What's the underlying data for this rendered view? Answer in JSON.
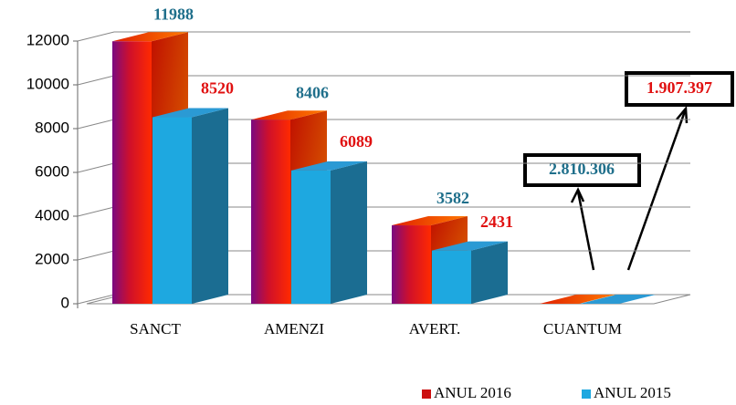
{
  "chart_data": {
    "type": "bar3d",
    "categories": [
      "SANCT",
      "AMENZI",
      "AVERT.",
      "CUANTUM"
    ],
    "series": [
      {
        "name": "ANUL 2016",
        "color": "#cc1010",
        "label_color": "#1f6f8b",
        "values": [
          11988,
          8406,
          3582,
          0
        ]
      },
      {
        "name": "ANUL 2015",
        "color": "#1ea8e0",
        "label_color": "#e01010",
        "values": [
          8520,
          6089,
          2431,
          0
        ]
      }
    ],
    "ylim": [
      0,
      12000
    ],
    "yticks": [
      0,
      2000,
      4000,
      6000,
      8000,
      10000,
      12000
    ],
    "grid": true,
    "legend": "bottom-right",
    "annotations": [
      {
        "text": "2.810.306",
        "color": "#1f6f8b"
      },
      {
        "text": "1.907.397",
        "color": "#e01010"
      }
    ]
  }
}
